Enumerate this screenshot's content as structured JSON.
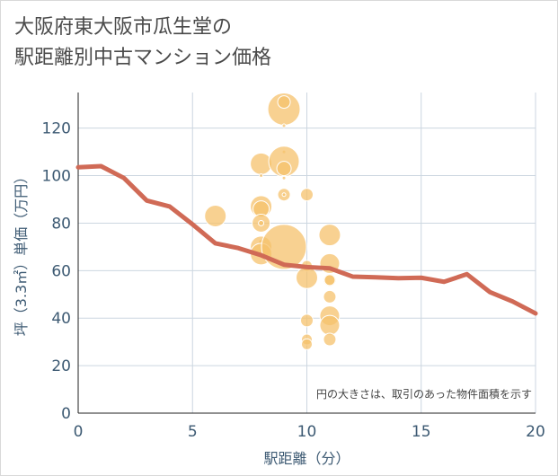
{
  "title": {
    "line1": "大阪府東大阪市瓜生堂の",
    "line2": "駅距離別中古マンション価格"
  },
  "chart_data": {
    "type": "scatter",
    "xlabel": "駅距離（分）",
    "ylabel": "坪（3.3㎡）単価（万円）",
    "xlim": [
      0,
      20
    ],
    "ylim": [
      0,
      135
    ],
    "xticks": [
      0,
      5,
      10,
      15,
      20
    ],
    "yticks": [
      0,
      20,
      40,
      60,
      80,
      100,
      120
    ],
    "grid": true,
    "annotation": "円の大きさは、取引のあった物件面積を示す",
    "colors": {
      "bubble": "#f5c16c",
      "line": "#d06a56",
      "axis_text": "#3d5a73",
      "grid": "#ccd6e0"
    },
    "series": [
      {
        "type": "bubble",
        "points": [
          {
            "x": 6,
            "y": 83,
            "r": 12
          },
          {
            "x": 8,
            "y": 105,
            "r": 12
          },
          {
            "x": 8,
            "y": 100,
            "r": 2
          },
          {
            "x": 8,
            "y": 87,
            "r": 12
          },
          {
            "x": 8,
            "y": 86,
            "r": 9
          },
          {
            "x": 8,
            "y": 80,
            "r": 10
          },
          {
            "x": 8,
            "y": 80,
            "r": 3
          },
          {
            "x": 8,
            "y": 72,
            "r": 3
          },
          {
            "x": 8,
            "y": 70,
            "r": 12
          },
          {
            "x": 8,
            "y": 67,
            "r": 12
          },
          {
            "x": 9,
            "y": 128,
            "r": 18
          },
          {
            "x": 9,
            "y": 131,
            "r": 7
          },
          {
            "x": 9,
            "y": 121,
            "r": 2
          },
          {
            "x": 9,
            "y": 110,
            "r": 2
          },
          {
            "x": 9,
            "y": 106,
            "r": 17
          },
          {
            "x": 9,
            "y": 103,
            "r": 8
          },
          {
            "x": 9,
            "y": 99,
            "r": 2
          },
          {
            "x": 9,
            "y": 92,
            "r": 7
          },
          {
            "x": 9,
            "y": 92,
            "r": 2
          },
          {
            "x": 9,
            "y": 70,
            "r": 25
          },
          {
            "x": 10,
            "y": 92,
            "r": 7
          },
          {
            "x": 10,
            "y": 62,
            "r": 6
          },
          {
            "x": 10,
            "y": 57,
            "r": 12
          },
          {
            "x": 10,
            "y": 39,
            "r": 7
          },
          {
            "x": 10,
            "y": 31,
            "r": 6
          },
          {
            "x": 10,
            "y": 29,
            "r": 6
          },
          {
            "x": 11,
            "y": 75,
            "r": 12
          },
          {
            "x": 11,
            "y": 63,
            "r": 11
          },
          {
            "x": 11,
            "y": 56,
            "r": 7
          },
          {
            "x": 11,
            "y": 56,
            "r": 6
          },
          {
            "x": 11,
            "y": 49,
            "r": 7
          },
          {
            "x": 11,
            "y": 41,
            "r": 11
          },
          {
            "x": 11,
            "y": 37,
            "r": 11
          },
          {
            "x": 11,
            "y": 31,
            "r": 7
          }
        ]
      },
      {
        "type": "line",
        "x": [
          0,
          1,
          2,
          3,
          4,
          5,
          6,
          7,
          8,
          9,
          10,
          11,
          12,
          13,
          14,
          15,
          16,
          17,
          18,
          19,
          20
        ],
        "y": [
          103.5,
          104,
          99,
          89.5,
          87,
          79.5,
          71.5,
          69.5,
          66.5,
          62.5,
          61.5,
          61,
          57.5,
          57.2,
          56.8,
          57,
          55.3,
          58.5,
          51,
          47,
          42
        ]
      }
    ]
  }
}
